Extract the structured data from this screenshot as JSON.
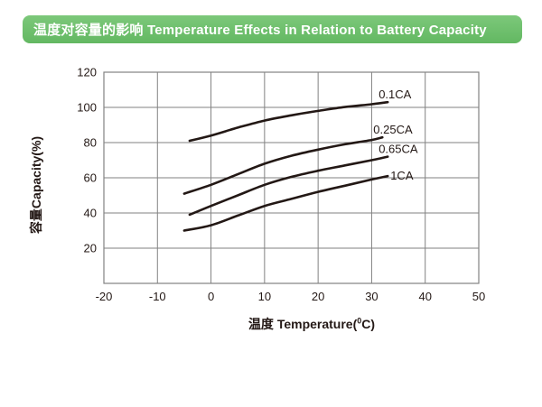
{
  "page": {
    "bg_color": "#ffffff"
  },
  "header": {
    "title": "温度对容量的影响 Temperature Effects in Relation to Battery Capacity",
    "bg_color": "#6cbf6b",
    "text_color": "#ffffff"
  },
  "chart_data": {
    "type": "line",
    "title": "Temperature Effects in Relation to Battery Capacity",
    "xlabel_zh": "温度",
    "xlabel_en": " Temperature(",
    "xlabel_sup": "0",
    "xlabel_close": "C)",
    "ylabel": "容量Capacity(%)",
    "xlim": [
      -20,
      50
    ],
    "ylim": [
      0,
      120
    ],
    "x_ticks": [
      -20,
      -10,
      0,
      10,
      20,
      30,
      40,
      50
    ],
    "y_ticks": [
      20,
      40,
      60,
      80,
      100,
      120
    ],
    "grid": true,
    "legend_position": "labels at right end of each line",
    "line_color": "#231815",
    "grid_color": "#828282",
    "text_color": "#231815",
    "series": [
      {
        "name": "0.1CA",
        "points": [
          [
            -4,
            81
          ],
          [
            0,
            84
          ],
          [
            5,
            88.5
          ],
          [
            10,
            92.5
          ],
          [
            15,
            95.5
          ],
          [
            20,
            98
          ],
          [
            25,
            100.2
          ],
          [
            30,
            101.8
          ],
          [
            33,
            103
          ]
        ]
      },
      {
        "name": "0.25CA",
        "points": [
          [
            -5,
            51
          ],
          [
            0,
            56
          ],
          [
            5,
            62
          ],
          [
            10,
            68
          ],
          [
            15,
            72.5
          ],
          [
            20,
            76
          ],
          [
            25,
            79
          ],
          [
            30,
            81.5
          ],
          [
            32,
            83
          ]
        ]
      },
      {
        "name": "0.65CA",
        "points": [
          [
            -4,
            39
          ],
          [
            0,
            44
          ],
          [
            5,
            50
          ],
          [
            10,
            56
          ],
          [
            15,
            60.5
          ],
          [
            20,
            64
          ],
          [
            25,
            67
          ],
          [
            30,
            70
          ],
          [
            33,
            72
          ]
        ]
      },
      {
        "name": "1CA",
        "points": [
          [
            -5,
            30
          ],
          [
            0,
            33
          ],
          [
            5,
            38.5
          ],
          [
            10,
            44
          ],
          [
            15,
            48
          ],
          [
            20,
            52
          ],
          [
            25,
            55.5
          ],
          [
            30,
            59
          ],
          [
            33,
            61
          ]
        ]
      }
    ]
  }
}
